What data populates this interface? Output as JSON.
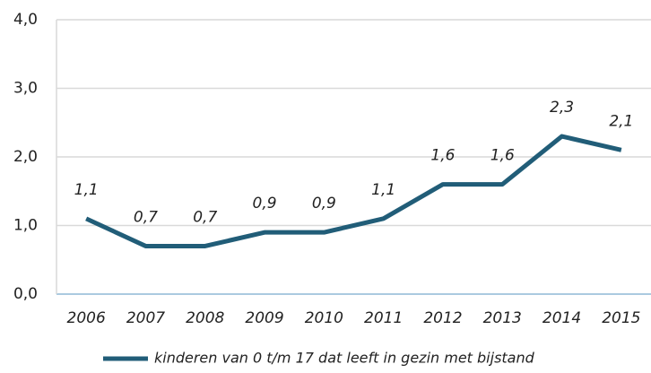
{
  "chart_data": {
    "type": "line",
    "categories": [
      "2006",
      "2007",
      "2008",
      "2009",
      "2010",
      "2011",
      "2012",
      "2013",
      "2014",
      "2015"
    ],
    "series": [
      {
        "name": "kinderen van 0 t/m 17 dat leeft in gezin met bijstand",
        "color": "#215d78",
        "values": [
          1.1,
          0.7,
          0.7,
          0.9,
          0.9,
          1.1,
          1.6,
          1.6,
          2.3,
          2.1
        ],
        "value_labels": [
          "1,1",
          "0,7",
          "0,7",
          "0,9",
          "0,9",
          "1,1",
          "1,6",
          "1,6",
          "2,3",
          "2,1"
        ]
      }
    ],
    "ylim": [
      0,
      4
    ],
    "yticks": [
      {
        "value": 0,
        "label": "0,0"
      },
      {
        "value": 1,
        "label": "1,0"
      },
      {
        "value": 2,
        "label": "2,0"
      },
      {
        "value": 3,
        "label": "3,0"
      },
      {
        "value": 4,
        "label": "4,0"
      }
    ],
    "grid": true,
    "legend": "bottom"
  }
}
